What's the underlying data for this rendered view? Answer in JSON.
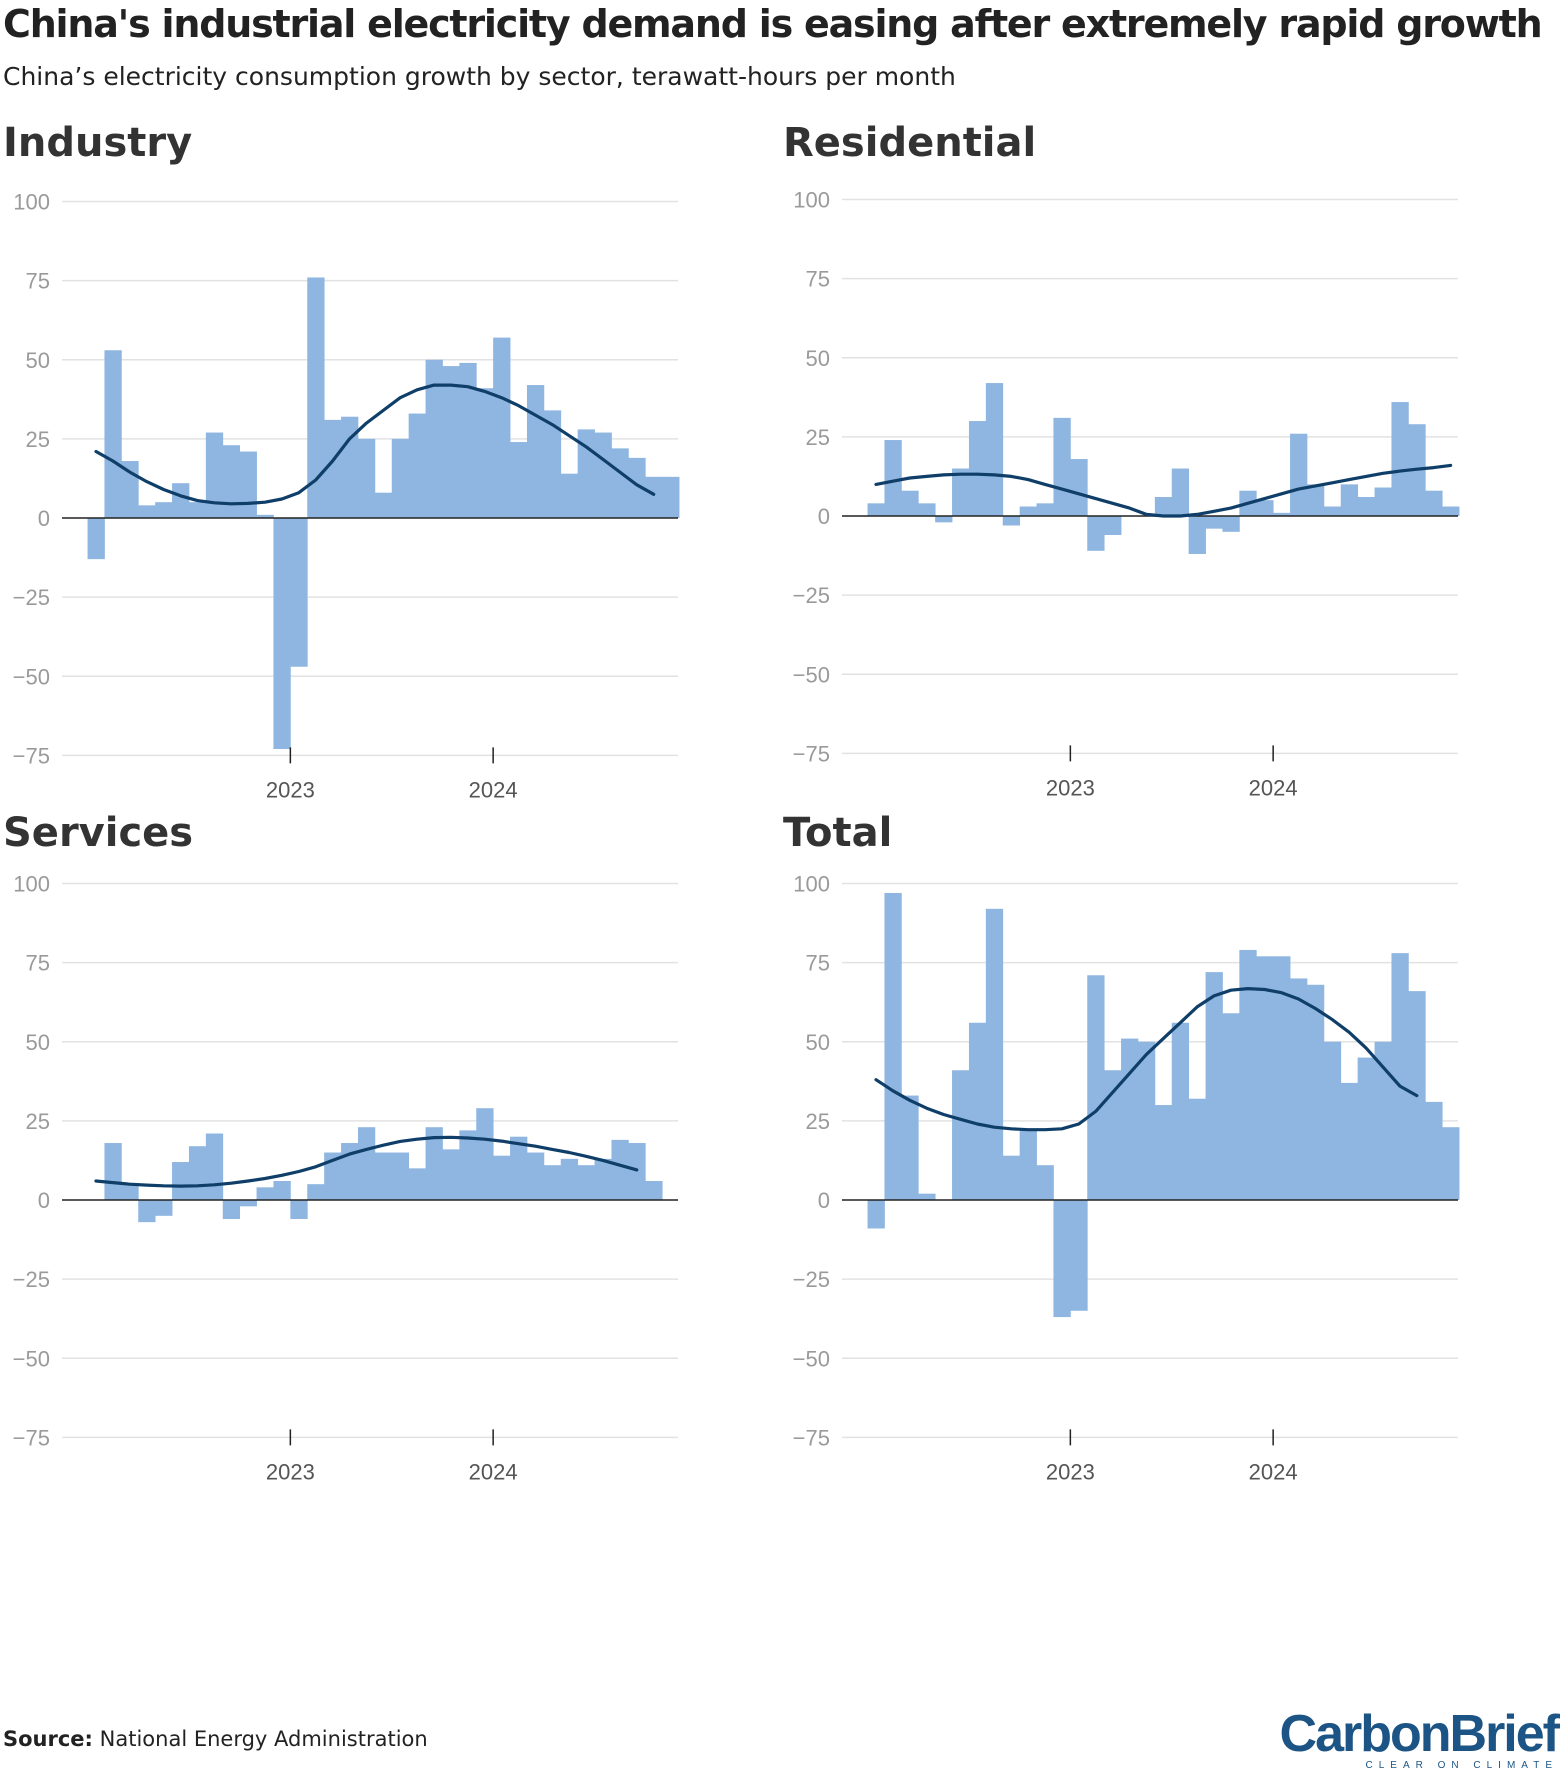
{
  "header": {
    "title": "China's industrial electricity demand is easing after extremely rapid growth",
    "subtitle": "China’s electricity consumption growth by sector, terawatt-hours per month"
  },
  "footer": {
    "source_label": "Source:",
    "source_text": "National Energy Administration",
    "logo_text": "CarbonBrief",
    "logo_tagline": "CLEAR ON CLIMATE"
  },
  "colors": {
    "bar": "#8fb6e0",
    "trend": "#0f3e69",
    "grid": "#e2e2e2",
    "axis": "#222222"
  },
  "chart_data": [
    {
      "type": "bar",
      "title": "Industry",
      "ylim": [
        -75,
        100
      ],
      "yticks": [
        100,
        75,
        50,
        25,
        0,
        -25,
        -50,
        -75
      ],
      "ytick_labels": [
        "100",
        "75",
        "50",
        "25",
        "0",
        "−25",
        "−50",
        "−75"
      ],
      "x_tick_labels": [
        "2023",
        "2024"
      ],
      "x_tick_positions": [
        11.5,
        23.5
      ],
      "grid": true,
      "values": [
        -13,
        53,
        18,
        4,
        5,
        11,
        5,
        27,
        23,
        21,
        1,
        -73,
        -47,
        76,
        31,
        32,
        25,
        8,
        25,
        33,
        50,
        48,
        49,
        41,
        57,
        24,
        42,
        34,
        14,
        28,
        27,
        22,
        19,
        13,
        13
      ],
      "trend": [
        21,
        18,
        14.5,
        11.5,
        9,
        7,
        5.5,
        4.8,
        4.5,
        4.6,
        5,
        6,
        8,
        12,
        18,
        25,
        30,
        34,
        38,
        40.5,
        42,
        42,
        41.5,
        40,
        38,
        35.5,
        32.5,
        29.5,
        26,
        22.5,
        18.5,
        14.5,
        10.5,
        7.5
      ]
    },
    {
      "type": "bar",
      "title": "Residential",
      "ylim": [
        -75,
        100
      ],
      "yticks": [
        100,
        75,
        50,
        25,
        0,
        -25,
        -50,
        -75
      ],
      "ytick_labels": [
        "100",
        "75",
        "50",
        "25",
        "0",
        "−25",
        "−50",
        "−75"
      ],
      "x_tick_labels": [
        "2023",
        "2024"
      ],
      "x_tick_positions": [
        11.5,
        23.5
      ],
      "grid": true,
      "values": [
        4,
        24,
        8,
        4,
        -2,
        15,
        30,
        42,
        -3,
        3,
        4,
        31,
        18,
        -11,
        -6,
        0,
        0,
        6,
        15,
        -12,
        -4,
        -5,
        8,
        5,
        1,
        26,
        10,
        3,
        10,
        6,
        9,
        36,
        29,
        8,
        3
      ],
      "trend": [
        10,
        11,
        12,
        12.5,
        13,
        13.2,
        13.2,
        13,
        12.5,
        11.5,
        10,
        8.5,
        7,
        5.5,
        4,
        2.5,
        0.5,
        0,
        0,
        0.5,
        1.5,
        2.5,
        4,
        5.5,
        7,
        8.5,
        9.5,
        10.5,
        11.5,
        12.5,
        13.5,
        14.2,
        14.8,
        15.3,
        16
      ]
    },
    {
      "type": "bar",
      "title": "Services",
      "ylim": [
        -75,
        100
      ],
      "yticks": [
        100,
        75,
        50,
        25,
        0,
        -25,
        -50,
        -75
      ],
      "ytick_labels": [
        "100",
        "75",
        "50",
        "25",
        "0",
        "−25",
        "−50",
        "−75"
      ],
      "x_tick_labels": [
        "2023",
        "2024"
      ],
      "x_tick_positions": [
        11.5,
        23.5
      ],
      "grid": true,
      "values": [
        0,
        18,
        5,
        -7,
        -5,
        12,
        17,
        21,
        -6,
        -2,
        4,
        6,
        -6,
        5,
        15,
        18,
        23,
        15,
        15,
        10,
        23,
        16,
        22,
        29,
        14,
        20,
        15,
        11,
        13,
        11,
        13,
        19,
        18,
        6
      ],
      "trend": [
        6,
        5.5,
        5,
        4.7,
        4.5,
        4.4,
        4.5,
        4.8,
        5.3,
        6,
        6.8,
        7.8,
        9,
        10.5,
        12.5,
        14.5,
        16,
        17.3,
        18.5,
        19.2,
        19.7,
        19.8,
        19.6,
        19.2,
        18.6,
        17.8,
        17,
        16,
        15,
        13.8,
        12.5,
        11,
        9.5
      ]
    },
    {
      "type": "bar",
      "title": "Total",
      "ylim": [
        -75,
        100
      ],
      "yticks": [
        100,
        75,
        50,
        25,
        0,
        -25,
        -50,
        -75
      ],
      "ytick_labels": [
        "100",
        "75",
        "50",
        "25",
        "0",
        "−25",
        "−50",
        "−75"
      ],
      "x_tick_labels": [
        "2023",
        "2024"
      ],
      "x_tick_positions": [
        11.5,
        23.5
      ],
      "grid": true,
      "values": [
        -9,
        97,
        33,
        2,
        0,
        41,
        56,
        92,
        14,
        22,
        11,
        -37,
        -35,
        71,
        41,
        51,
        50,
        30,
        56,
        32,
        72,
        59,
        79,
        77,
        77,
        70,
        68,
        50,
        37,
        45,
        50,
        78,
        66,
        31,
        23
      ],
      "trend": [
        38,
        34.5,
        31.5,
        29,
        27,
        25.5,
        24,
        23,
        22.5,
        22.2,
        22.2,
        22.5,
        24,
        28,
        34,
        40,
        46,
        51,
        56,
        61,
        64.5,
        66.3,
        66.8,
        66.5,
        65.5,
        63.5,
        60.5,
        57,
        53,
        48,
        42,
        36,
        33
      ]
    }
  ]
}
